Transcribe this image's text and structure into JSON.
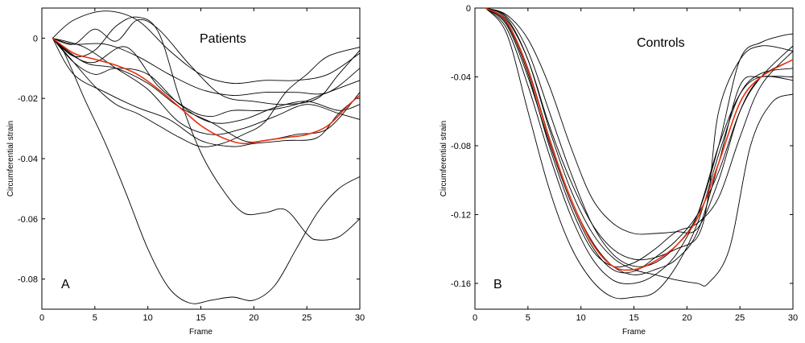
{
  "chart_data": [
    {
      "type": "line",
      "title": "Patients",
      "panel_letter": "A",
      "xlabel": "Frame",
      "ylabel": "Circumferential strain",
      "xlim": [
        0,
        30
      ],
      "ylim": [
        -0.09,
        0.01
      ],
      "xticks": [
        0,
        5,
        10,
        15,
        20,
        25,
        30
      ],
      "yticks": [
        0,
        -0.02,
        -0.04,
        -0.06,
        -0.08
      ],
      "ytick_labels": [
        "0",
        "-0.02",
        "-0.04",
        "-0.06",
        "-0.08"
      ],
      "grid": false,
      "series_colors": {
        "individual": "#000000",
        "mean": "#e8300e"
      },
      "series": [
        {
          "x": [
            1,
            3,
            6,
            9,
            12,
            15,
            18,
            21,
            24,
            27,
            30
          ],
          "y": [
            0,
            0.006,
            0.009,
            0.006,
            -0.004,
            -0.012,
            -0.015,
            -0.014,
            -0.014,
            -0.012,
            -0.005
          ]
        },
        {
          "x": [
            1,
            3,
            5,
            7,
            9,
            11,
            14,
            17,
            20,
            23,
            26,
            28,
            30
          ],
          "y": [
            0,
            -0.002,
            0.003,
            -0.001,
            0.006,
            0.003,
            -0.009,
            -0.019,
            -0.021,
            -0.022,
            -0.02,
            -0.012,
            -0.004
          ]
        },
        {
          "x": [
            1,
            3,
            6,
            9,
            12,
            15,
            18,
            21,
            24,
            27,
            30
          ],
          "y": [
            0,
            -0.002,
            -0.002,
            -0.006,
            -0.012,
            -0.017,
            -0.019,
            -0.018,
            -0.018,
            -0.018,
            -0.01
          ]
        },
        {
          "x": [
            1,
            3,
            5,
            8,
            11,
            14,
            16,
            18,
            21,
            24,
            27,
            30
          ],
          "y": [
            0,
            -0.006,
            -0.008,
            -0.003,
            -0.016,
            -0.024,
            -0.026,
            -0.024,
            -0.024,
            -0.022,
            -0.018,
            -0.014
          ]
        },
        {
          "x": [
            1,
            3,
            5,
            7,
            10,
            13,
            16,
            19,
            22,
            25,
            28,
            30
          ],
          "y": [
            0,
            -0.008,
            -0.012,
            -0.01,
            -0.012,
            -0.022,
            -0.028,
            -0.027,
            -0.023,
            -0.021,
            -0.024,
            -0.022
          ]
        },
        {
          "x": [
            1,
            4,
            7,
            10,
            13,
            16,
            19,
            22,
            25,
            28,
            30
          ],
          "y": [
            0,
            -0.003,
            -0.01,
            -0.017,
            -0.028,
            -0.032,
            -0.03,
            -0.026,
            -0.022,
            -0.025,
            -0.027
          ]
        },
        {
          "x": [
            1,
            4,
            7,
            10,
            13,
            16,
            19,
            21,
            24,
            27,
            30
          ],
          "y": [
            0,
            -0.008,
            -0.01,
            -0.015,
            -0.023,
            -0.028,
            -0.034,
            -0.034,
            -0.032,
            -0.03,
            -0.018
          ]
        },
        {
          "x": [
            1,
            3,
            6,
            9,
            12,
            15,
            18,
            20,
            23,
            26,
            28,
            30
          ],
          "y": [
            0,
            -0.012,
            -0.018,
            -0.023,
            -0.027,
            -0.034,
            -0.036,
            -0.035,
            -0.034,
            -0.033,
            -0.025,
            -0.019
          ]
        },
        {
          "x": [
            1,
            3,
            5,
            7,
            9,
            11,
            13,
            15,
            17,
            19,
            21,
            23,
            25,
            27,
            30
          ],
          "y": [
            0,
            -0.008,
            -0.016,
            -0.022,
            -0.025,
            -0.029,
            -0.033,
            -0.036,
            -0.035,
            -0.032,
            -0.028,
            -0.018,
            -0.012,
            -0.006,
            -0.003
          ]
        },
        {
          "x": [
            1,
            2,
            4,
            6,
            8,
            10,
            12,
            14,
            16,
            18,
            20,
            22,
            24,
            26,
            28,
            30
          ],
          "y": [
            0,
            -0.004,
            -0.02,
            -0.035,
            -0.052,
            -0.07,
            -0.083,
            -0.088,
            -0.087,
            -0.086,
            -0.087,
            -0.082,
            -0.07,
            -0.058,
            -0.05,
            -0.046
          ]
        },
        {
          "x": [
            1,
            3,
            5,
            7,
            9,
            11,
            13,
            15,
            17,
            19,
            21,
            23,
            25,
            26,
            28,
            30
          ],
          "y": [
            0,
            -0.006,
            -0.004,
            0.004,
            0.007,
            0.002,
            -0.02,
            -0.038,
            -0.05,
            -0.058,
            -0.058,
            -0.057,
            -0.065,
            -0.067,
            -0.066,
            -0.06
          ]
        },
        {
          "x": [
            1,
            3,
            5,
            7,
            9,
            11,
            13,
            15,
            17,
            19,
            21,
            23,
            25,
            27,
            29,
            30
          ],
          "y": [
            0,
            -0.005,
            -0.007,
            -0.009,
            -0.012,
            -0.017,
            -0.023,
            -0.029,
            -0.033,
            -0.035,
            -0.034,
            -0.033,
            -0.032,
            -0.029,
            -0.022,
            -0.019
          ],
          "mean": true
        }
      ]
    },
    {
      "type": "line",
      "title": "Controls",
      "panel_letter": "B",
      "xlabel": "Frame",
      "ylabel": "Circumferential strain",
      "xlim": [
        0,
        30
      ],
      "ylim": [
        -0.175,
        0
      ],
      "xticks": [
        0,
        5,
        10,
        15,
        20,
        25,
        30
      ],
      "yticks": [
        0,
        -0.04,
        -0.08,
        -0.12,
        -0.16
      ],
      "ytick_labels": [
        "0",
        "-0.04",
        "-0.08",
        "-0.12",
        "-0.16"
      ],
      "grid": false,
      "series_colors": {
        "individual": "#000000",
        "mean": "#e8300e"
      },
      "series": [
        {
          "x": [
            1,
            3,
            5,
            7,
            9,
            11,
            13,
            15,
            17,
            19,
            21,
            23,
            25,
            27,
            29,
            30
          ],
          "y": [
            0,
            -0.005,
            -0.025,
            -0.06,
            -0.095,
            -0.125,
            -0.143,
            -0.15,
            -0.148,
            -0.138,
            -0.12,
            -0.08,
            -0.03,
            -0.02,
            -0.016,
            -0.015
          ]
        },
        {
          "x": [
            1,
            3,
            5,
            7,
            9,
            11,
            13,
            15,
            17,
            19,
            21,
            23,
            25,
            27,
            30
          ],
          "y": [
            0,
            -0.008,
            -0.035,
            -0.075,
            -0.11,
            -0.135,
            -0.15,
            -0.155,
            -0.152,
            -0.146,
            -0.13,
            -0.09,
            -0.045,
            -0.04,
            -0.04
          ]
        },
        {
          "x": [
            1,
            3,
            5,
            7,
            9,
            11,
            13,
            15,
            17,
            19,
            21,
            23,
            25,
            27,
            30
          ],
          "y": [
            0,
            -0.012,
            -0.045,
            -0.085,
            -0.12,
            -0.145,
            -0.158,
            -0.16,
            -0.155,
            -0.143,
            -0.12,
            -0.08,
            -0.05,
            -0.04,
            -0.042
          ]
        },
        {
          "x": [
            1,
            3,
            5,
            7,
            9,
            11,
            13,
            15,
            17,
            19,
            21,
            23,
            25,
            27,
            30
          ],
          "y": [
            0,
            -0.015,
            -0.06,
            -0.105,
            -0.138,
            -0.158,
            -0.168,
            -0.168,
            -0.165,
            -0.15,
            -0.125,
            -0.085,
            -0.05,
            -0.038,
            -0.035
          ]
        },
        {
          "x": [
            1,
            3,
            5,
            7,
            9,
            11,
            13,
            15,
            17,
            19,
            21,
            22,
            24,
            26,
            28,
            30
          ],
          "y": [
            0,
            -0.006,
            -0.03,
            -0.07,
            -0.105,
            -0.13,
            -0.145,
            -0.152,
            -0.155,
            -0.158,
            -0.16,
            -0.16,
            -0.14,
            -0.08,
            -0.055,
            -0.05
          ]
        },
        {
          "x": [
            1,
            3,
            5,
            7,
            9,
            11,
            13,
            15,
            17,
            19,
            21,
            23,
            25,
            27,
            30
          ],
          "y": [
            0,
            -0.004,
            -0.018,
            -0.045,
            -0.08,
            -0.11,
            -0.125,
            -0.131,
            -0.131,
            -0.13,
            -0.128,
            -0.1,
            -0.06,
            -0.04,
            -0.03
          ]
        },
        {
          "x": [
            1,
            3,
            5,
            7,
            9,
            11,
            13,
            15,
            17,
            19,
            21,
            23,
            25,
            27,
            30
          ],
          "y": [
            0,
            -0.01,
            -0.04,
            -0.078,
            -0.112,
            -0.138,
            -0.152,
            -0.153,
            -0.145,
            -0.135,
            -0.12,
            -0.095,
            -0.06,
            -0.04,
            -0.022
          ]
        },
        {
          "x": [
            1,
            3,
            5,
            7,
            9,
            11,
            13,
            15,
            17,
            19,
            21,
            23,
            25,
            27,
            30
          ],
          "y": [
            0,
            -0.009,
            -0.038,
            -0.08,
            -0.115,
            -0.14,
            -0.15,
            -0.148,
            -0.14,
            -0.13,
            -0.125,
            -0.11,
            -0.075,
            -0.045,
            -0.025
          ]
        },
        {
          "x": [
            1,
            3,
            5,
            7,
            9,
            11,
            13,
            15,
            17,
            19,
            21,
            22,
            23,
            25,
            27,
            30
          ],
          "y": [
            0,
            -0.007,
            -0.03,
            -0.068,
            -0.1,
            -0.125,
            -0.14,
            -0.146,
            -0.145,
            -0.14,
            -0.133,
            -0.11,
            -0.06,
            -0.03,
            -0.022,
            -0.025
          ]
        },
        {
          "x": [
            1,
            3,
            5,
            7,
            9,
            11,
            13,
            15,
            17,
            19,
            21,
            23,
            25,
            27,
            30
          ],
          "y": [
            0,
            -0.008,
            -0.036,
            -0.076,
            -0.11,
            -0.136,
            -0.15,
            -0.152,
            -0.147,
            -0.138,
            -0.122,
            -0.09,
            -0.055,
            -0.04,
            -0.03
          ],
          "mean": true
        }
      ]
    }
  ]
}
